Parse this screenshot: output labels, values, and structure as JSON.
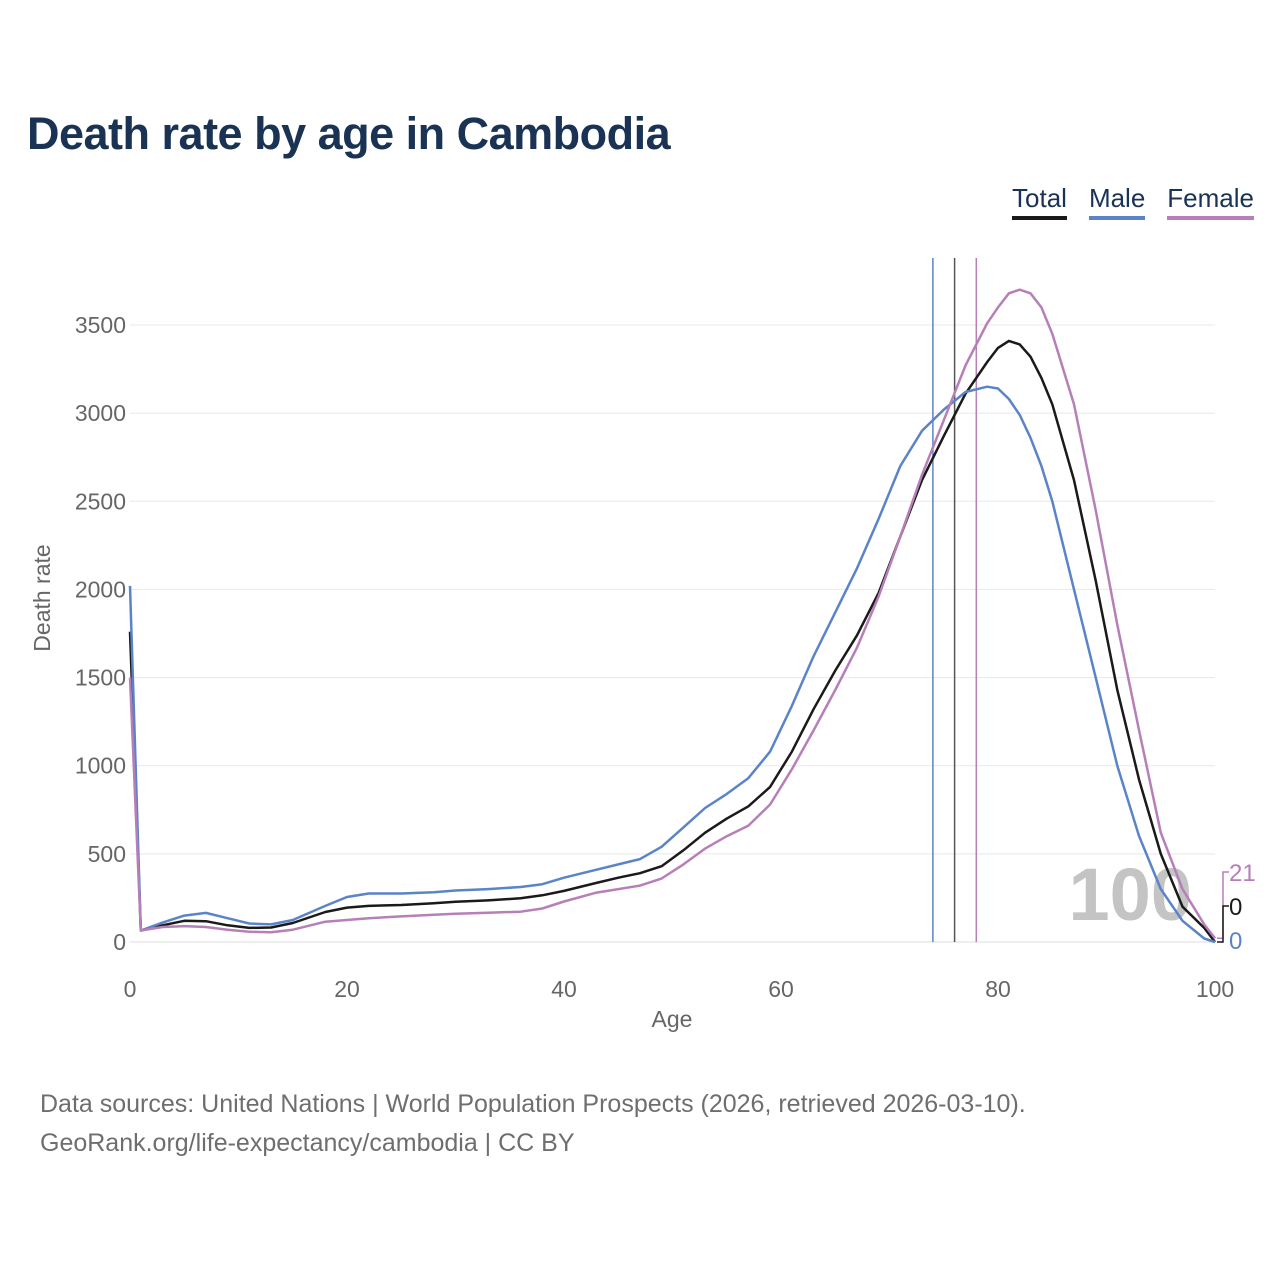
{
  "title": "Death rate by age in Cambodia",
  "legend": [
    {
      "key": "total",
      "label": "Total",
      "color": "#1a1a1a"
    },
    {
      "key": "male",
      "label": "Male",
      "color": "#5b84c8"
    },
    {
      "key": "female",
      "label": "Female",
      "color": "#b77fb8"
    }
  ],
  "source": {
    "line1": "Data sources: United Nations | World Population Prospects (2026, retrieved 2026-03-10).",
    "line2": "GeoRank.org/life-expectancy/cambodia | CC BY"
  },
  "chart_data": {
    "type": "line",
    "title": "Death rate by age in Cambodia",
    "xlabel": "Age",
    "ylabel": "Death rate",
    "xlim": [
      0,
      100
    ],
    "ylim": [
      0,
      3880
    ],
    "xticks": [
      0,
      20,
      40,
      60,
      80,
      100
    ],
    "yticks": [
      0,
      500,
      1000,
      1500,
      2000,
      2500,
      3000,
      3500
    ],
    "grid": true,
    "legend_position": "top-right",
    "watermark": "100",
    "end_labels": [
      {
        "series": "female",
        "text": "21",
        "color": "#b77fb8"
      },
      {
        "series": "total",
        "text": "0",
        "color": "#1a1a1a"
      },
      {
        "series": "male",
        "text": "0",
        "color": "#5b84c8"
      }
    ],
    "life_expectancy_markers": [
      {
        "series": "male",
        "age": 74,
        "color": "#5b84c8"
      },
      {
        "series": "total",
        "age": 76,
        "color": "#555555"
      },
      {
        "series": "female",
        "age": 78,
        "color": "#b77fb8"
      }
    ],
    "x": [
      0,
      1,
      3,
      5,
      7,
      9,
      11,
      13,
      15,
      18,
      20,
      22,
      25,
      28,
      30,
      33,
      36,
      38,
      40,
      43,
      45,
      47,
      49,
      51,
      53,
      55,
      57,
      59,
      61,
      63,
      65,
      67,
      69,
      71,
      73,
      75,
      77,
      79,
      80,
      81,
      82,
      83,
      84,
      85,
      87,
      89,
      91,
      93,
      95,
      97,
      99,
      100
    ],
    "series": [
      {
        "name": "Total",
        "key": "total",
        "color": "#1a1a1a",
        "values": [
          1760,
          65,
          95,
          120,
          118,
          95,
          80,
          82,
          108,
          170,
          195,
          205,
          210,
          220,
          228,
          236,
          248,
          265,
          290,
          335,
          365,
          390,
          430,
          520,
          620,
          700,
          770,
          880,
          1080,
          1320,
          1540,
          1740,
          1980,
          2300,
          2620,
          2870,
          3110,
          3290,
          3370,
          3410,
          3390,
          3320,
          3200,
          3050,
          2620,
          2050,
          1430,
          920,
          500,
          200,
          80,
          0
        ]
      },
      {
        "name": "Male",
        "key": "male",
        "color": "#5b84c8",
        "values": [
          2020,
          65,
          110,
          150,
          165,
          135,
          105,
          100,
          125,
          205,
          255,
          275,
          275,
          282,
          292,
          300,
          312,
          328,
          365,
          410,
          440,
          470,
          540,
          650,
          760,
          840,
          930,
          1080,
          1340,
          1620,
          1870,
          2120,
          2400,
          2700,
          2900,
          3020,
          3120,
          3150,
          3140,
          3080,
          2990,
          2860,
          2700,
          2500,
          2000,
          1500,
          1000,
          600,
          300,
          120,
          20,
          0
        ]
      },
      {
        "name": "Female",
        "key": "female",
        "color": "#b77fb8",
        "values": [
          1500,
          65,
          85,
          90,
          85,
          70,
          58,
          55,
          70,
          115,
          125,
          135,
          145,
          155,
          160,
          166,
          172,
          190,
          230,
          280,
          300,
          320,
          360,
          440,
          530,
          600,
          660,
          780,
          980,
          1200,
          1430,
          1670,
          1960,
          2300,
          2650,
          2960,
          3270,
          3510,
          3600,
          3680,
          3700,
          3680,
          3600,
          3450,
          3050,
          2450,
          1800,
          1200,
          620,
          300,
          100,
          21
        ]
      }
    ]
  }
}
